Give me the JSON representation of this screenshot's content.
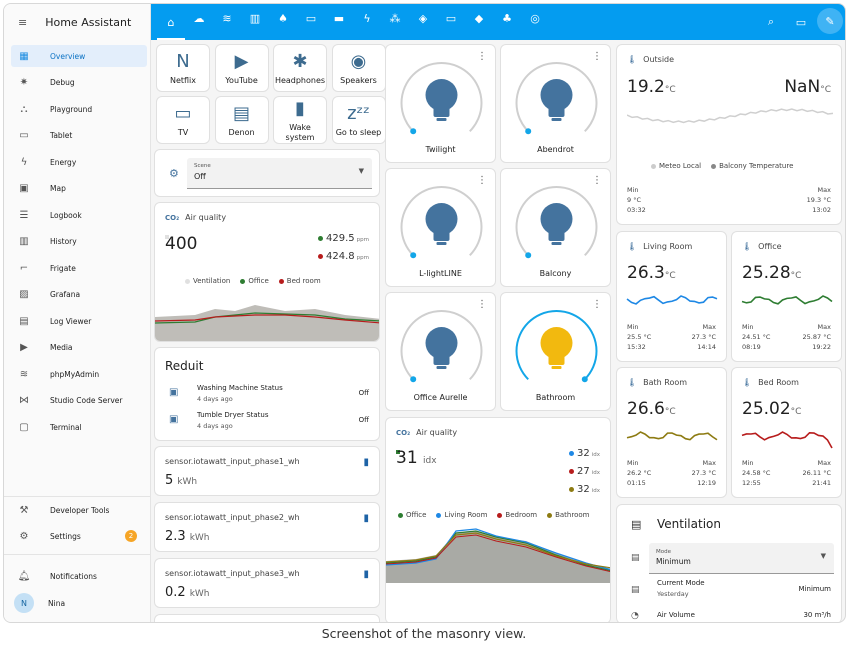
{
  "app": {
    "title": "Home Assistant"
  },
  "sidebar": {
    "items": [
      {
        "label": "Overview",
        "icon": "grid-icon"
      },
      {
        "label": "Debug",
        "icon": "bug-icon"
      },
      {
        "label": "Playground",
        "icon": "playground-icon"
      },
      {
        "label": "Tablet",
        "icon": "tablet-icon"
      },
      {
        "label": "Energy",
        "icon": "bolt-icon"
      },
      {
        "label": "Map",
        "icon": "map-icon"
      },
      {
        "label": "Logbook",
        "icon": "list-icon"
      },
      {
        "label": "History",
        "icon": "chart-icon"
      },
      {
        "label": "Frigate",
        "icon": "cctv-icon"
      },
      {
        "label": "Grafana",
        "icon": "grafana-icon"
      },
      {
        "label": "Log Viewer",
        "icon": "log-icon"
      },
      {
        "label": "Media",
        "icon": "media-icon"
      },
      {
        "label": "phpMyAdmin",
        "icon": "database-icon"
      },
      {
        "label": "Studio Code Server",
        "icon": "vscode-icon"
      },
      {
        "label": "Terminal",
        "icon": "terminal-icon"
      }
    ],
    "developer_tools": "Developer Tools",
    "settings": "Settings",
    "settings_badge": "2",
    "notifications": "Notifications",
    "user_name": "Nina",
    "user_initial": "N"
  },
  "buttons": [
    {
      "label": "Netflix",
      "glyph": "N"
    },
    {
      "label": "YouTube",
      "glyph": "▶"
    },
    {
      "label": "Headphones",
      "glyph": "✱"
    },
    {
      "label": "Speakers",
      "glyph": "◉"
    },
    {
      "label": "TV",
      "glyph": "▭"
    },
    {
      "label": "Denon",
      "glyph": "▤"
    },
    {
      "label": "Wake system",
      "glyph": "▮"
    },
    {
      "label": "Go to sleep",
      "glyph": "zᶻᶻ"
    }
  ],
  "scene": {
    "label": "Scene",
    "value": "Off"
  },
  "air_quality_1": {
    "title": "Air quality",
    "value": "400",
    "readings": [
      {
        "value": "429.5",
        "unit": "ppm",
        "color": "#2e7d32"
      },
      {
        "value": "424.8",
        "unit": "ppm",
        "color": "#b71c1c"
      }
    ],
    "legend": [
      {
        "name": "Ventilation",
        "color": "#e0e0e0"
      },
      {
        "name": "Office",
        "color": "#2e7d32"
      },
      {
        "name": "Bed room",
        "color": "#b71c1c"
      }
    ]
  },
  "reduit": {
    "title": "Reduit",
    "rows": [
      {
        "name": "Washing Machine Status",
        "time": "4 days ago",
        "state": "Off"
      },
      {
        "name": "Tumble Dryer Status",
        "time": "4 days ago",
        "state": "Off"
      }
    ]
  },
  "sensors": [
    {
      "name": "sensor.iotawatt_input_phase1_wh",
      "value": "5",
      "unit": "kWh"
    },
    {
      "name": "sensor.iotawatt_input_phase2_wh",
      "value": "2.3",
      "unit": "kWh"
    },
    {
      "name": "sensor.iotawatt_input_phase3_wh",
      "value": "0.2",
      "unit": "kWh"
    }
  ],
  "lights": [
    {
      "name": "Twilight",
      "on": false,
      "brightness": 0
    },
    {
      "name": "Abendrot",
      "on": false,
      "brightness": 0
    },
    {
      "name": "L-lightLINE",
      "on": false,
      "brightness": 0
    },
    {
      "name": "Balcony",
      "on": false,
      "brightness": 0
    },
    {
      "name": "Office Aurelle",
      "on": false,
      "brightness": 0
    },
    {
      "name": "Bathroom",
      "on": true,
      "brightness": 1.0
    }
  ],
  "air_quality_2": {
    "title": "Air quality",
    "value": "31",
    "unit": "idx",
    "readings": [
      {
        "value": "32",
        "unit": "idx",
        "color": "#1e88e5"
      },
      {
        "value": "27",
        "unit": "idx",
        "color": "#b71c1c"
      },
      {
        "value": "32",
        "unit": "idx",
        "color": "#8d7b12"
      }
    ],
    "legend": [
      {
        "name": "Office",
        "color": "#2e7d32"
      },
      {
        "name": "Living Room",
        "color": "#1e88e5"
      },
      {
        "name": "Bedroom",
        "color": "#b71c1c"
      },
      {
        "name": "Bathroom",
        "color": "#8d7b12"
      }
    ]
  },
  "outside": {
    "title": "Outside",
    "value": "19.2",
    "unit": "°C",
    "value2": "NaN",
    "unit2": "°C",
    "legend": [
      {
        "name": "Meteo Local",
        "color": "#cccccc"
      },
      {
        "name": "Balcony Temperature",
        "color": "#888888"
      }
    ],
    "min_label": "Min",
    "min_value": "9 °C",
    "min_time": "03:32",
    "max_label": "Max",
    "max_value": "19.3 °C",
    "max_time": "13:02"
  },
  "rooms": [
    {
      "title": "Living Room",
      "value": "26.3",
      "unit": "°C",
      "color": "#1e88e5",
      "min": "25.5 °C",
      "min_time": "15:32",
      "max": "27.3 °C",
      "max_time": "14:14"
    },
    {
      "title": "Office",
      "value": "25.28",
      "unit": "°C",
      "color": "#2e7d32",
      "min": "24.51 °C",
      "min_time": "08:19",
      "max": "25.87 °C",
      "max_time": "19:22"
    },
    {
      "title": "Bath Room",
      "value": "26.6",
      "unit": "°C",
      "color": "#8d7b12",
      "min": "26.2 °C",
      "min_time": "01:15",
      "max": "27.3 °C",
      "max_time": "12:19"
    },
    {
      "title": "Bed Room",
      "value": "25.02",
      "unit": "°C",
      "color": "#b71c1c",
      "min": "24.58 °C",
      "min_time": "12:55",
      "max": "26.11 °C",
      "max_time": "21:41"
    }
  ],
  "min_label": "Min",
  "max_label": "Max",
  "ventilation": {
    "title": "Ventilation",
    "mode_label": "Mode",
    "mode_value": "Minimum",
    "current_mode_label": "Current Mode",
    "current_mode_time": "Yesterday",
    "current_mode_value": "Minimum",
    "air_volume_label": "Air Volume",
    "air_volume_value": "30 m³/h"
  },
  "caption": "Screenshot of the masonry view.",
  "colors": {
    "accent": "#049cf0",
    "light_off": "#44739e",
    "light_on": "#f2b90f"
  }
}
